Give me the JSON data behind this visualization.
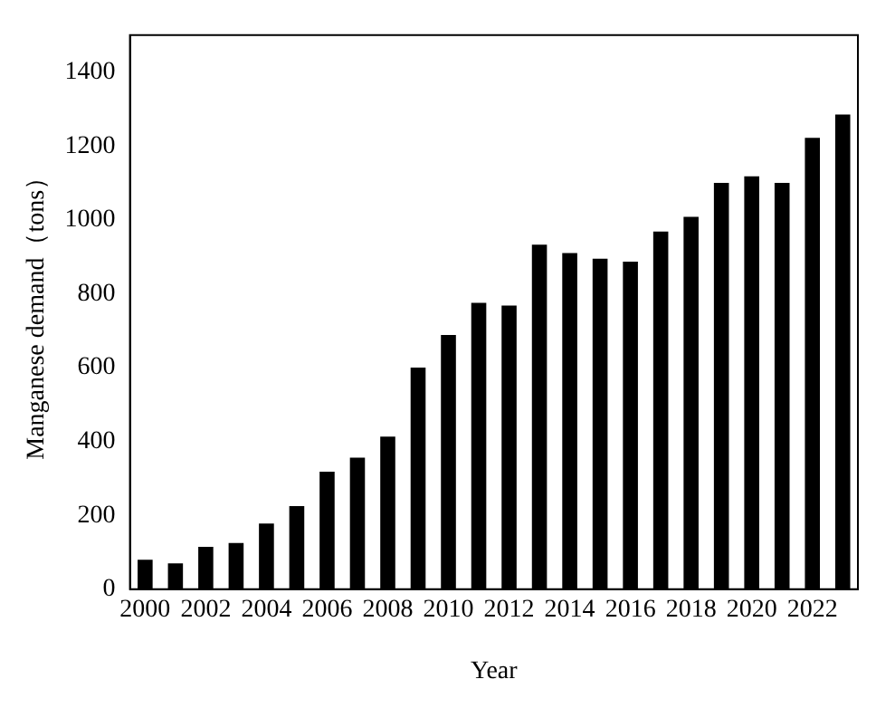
{
  "chart_data": {
    "type": "bar",
    "xlabel": "Year",
    "ylabel": "Manganese demand（tons）",
    "categories": [
      "2000",
      null,
      "2002",
      null,
      "2004",
      null,
      "2006",
      null,
      "2008",
      null,
      "2010",
      null,
      "2012",
      null,
      "2014",
      null,
      "2016",
      null,
      "2018",
      null,
      "2020",
      null,
      "2022",
      null
    ],
    "values": [
      80,
      70,
      115,
      125,
      178,
      225,
      318,
      356,
      413,
      600,
      688,
      775,
      768,
      933,
      910,
      895,
      887,
      968,
      1008,
      1100,
      1118,
      1100,
      1222,
      1285
    ],
    "color": "#000000",
    "ylim": [
      0,
      1500
    ],
    "yticks": [
      0,
      200,
      400,
      600,
      800,
      1000,
      1200,
      1400
    ],
    "grid": false,
    "legend": false
  }
}
